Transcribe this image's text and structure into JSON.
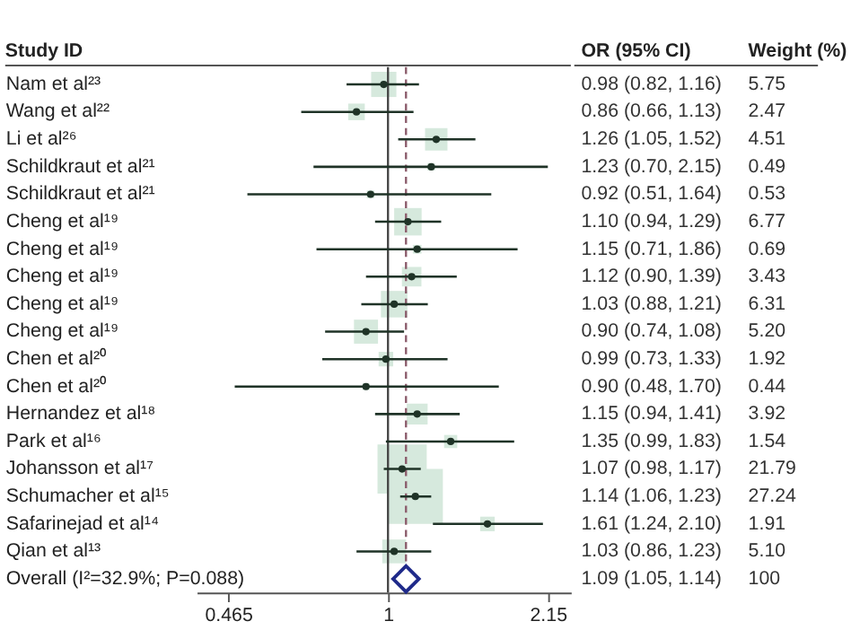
{
  "chart_data": {
    "type": "scatter",
    "orientation": "horizontal",
    "log": "x",
    "ylabel": "Study ID",
    "categories": [
      "Nam et al²³",
      "Wang et al²²",
      "Li et al²⁶",
      "Schildkraut et al²¹",
      "Schildkraut et al²¹",
      "Cheng et al¹⁹",
      "Cheng et al¹⁹",
      "Cheng et al¹⁹",
      "Cheng et al¹⁹",
      "Cheng et al¹⁹",
      "Chen et al²⁰",
      "Chen et al²⁰",
      "Hernandez et al¹⁸",
      "Park et al¹⁶",
      "Johansson et al¹⁷",
      "Schumacher et al¹⁵",
      "Safarinejad et al¹⁴",
      "Qian et al¹³",
      "Overall (I²=32.9%; P=0.088)"
    ],
    "xlim": [
      0.4,
      2.4
    ],
    "xticks": [
      0.465,
      1,
      2.15
    ],
    "ref_lines": [
      {
        "axis": "x",
        "value": 1,
        "color": "#444444",
        "line_style": "solid"
      },
      {
        "axis": "x",
        "value": 1.09,
        "color": "#8a5a6a",
        "line_style": "dashed"
      }
    ],
    "series": [
      {
        "type": "bubble",
        "marker": "square",
        "color": "#d6e9dd",
        "values": [
          0.98,
          0.86,
          1.26,
          1.23,
          0.92,
          1.1,
          1.15,
          1.12,
          1.03,
          0.9,
          0.99,
          0.9,
          1.15,
          1.35,
          1.07,
          1.14,
          1.61,
          1.03,
          null
        ],
        "errors": [
          [
            0.82,
            1.16
          ],
          [
            0.66,
            1.13
          ],
          [
            1.05,
            1.52
          ],
          [
            0.7,
            2.15
          ],
          [
            0.51,
            1.64
          ],
          [
            0.94,
            1.29
          ],
          [
            0.71,
            1.86
          ],
          [
            0.9,
            1.39
          ],
          [
            0.88,
            1.21
          ],
          [
            0.74,
            1.08
          ],
          [
            0.73,
            1.33
          ],
          [
            0.48,
            1.7
          ],
          [
            0.94,
            1.41
          ],
          [
            0.99,
            1.83
          ],
          [
            0.98,
            1.17
          ],
          [
            1.06,
            1.23
          ],
          [
            1.24,
            2.1
          ],
          [
            0.86,
            1.23
          ],
          null
        ],
        "sizes": [
          0.21,
          0.091,
          0.166,
          0.018,
          0.019,
          0.249,
          0.025,
          0.126,
          0.232,
          0.191,
          0.07,
          0.016,
          0.144,
          0.057,
          0.8,
          1,
          0.07,
          0.187,
          null
        ]
      },
      {
        "type": "scatter",
        "marker": "diamond",
        "color": "#1f2a8a",
        "values": [
          null,
          null,
          null,
          null,
          null,
          null,
          null,
          null,
          null,
          null,
          null,
          null,
          null,
          null,
          null,
          null,
          null,
          null,
          1.09
        ],
        "errors": [
          null,
          null,
          null,
          null,
          null,
          null,
          null,
          null,
          null,
          null,
          null,
          null,
          null,
          null,
          null,
          null,
          null,
          null,
          [
            1.05,
            1.14
          ]
        ]
      }
    ],
    "annotations": [
      "OR (95% CI)",
      "Weight (%)",
      "0.98 (0.82, 1.16)",
      "5.75",
      "0.86 (0.66, 1.13)",
      "2.47",
      "1.26 (1.05, 1.52)",
      "4.51",
      "1.23 (0.70, 2.15)",
      "0.49",
      "0.92 (0.51, 1.64)",
      "0.53",
      "1.10 (0.94, 1.29)",
      "6.77",
      "1.15 (0.71, 1.86)",
      "0.69",
      "1.12 (0.90, 1.39)",
      "3.43",
      "1.03 (0.88, 1.21)",
      "6.31",
      "0.90 (0.74, 1.08)",
      "5.20",
      "0.99 (0.73, 1.33)",
      "1.92",
      "0.90 (0.48, 1.70)",
      "0.44",
      "1.15 (0.94, 1.41)",
      "3.92",
      "1.35 (0.99, 1.83)",
      "1.54",
      "1.07 (0.98, 1.17)",
      "21.79",
      "1.14 (1.06, 1.23)",
      "27.24",
      "1.61 (1.24, 2.10)",
      "1.91",
      "1.03 (0.86, 1.23)",
      "5.10",
      "1.09 (1.05, 1.14)",
      "100"
    ]
  }
}
